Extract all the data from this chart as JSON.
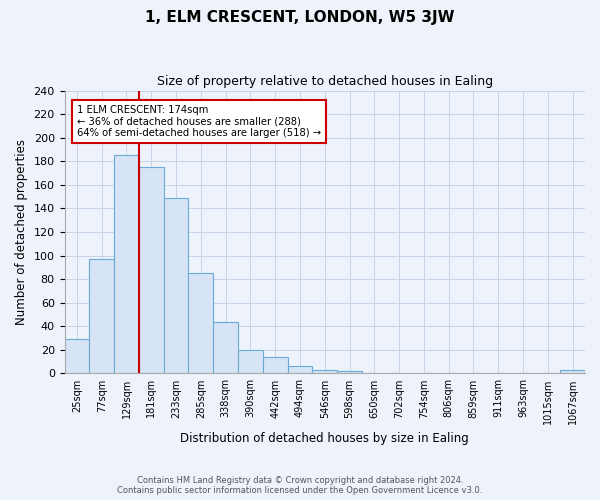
{
  "title": "1, ELM CRESCENT, LONDON, W5 3JW",
  "subtitle": "Size of property relative to detached houses in Ealing",
  "xlabel": "Distribution of detached houses by size in Ealing",
  "ylabel": "Number of detached properties",
  "bar_labels": [
    "25sqm",
    "77sqm",
    "129sqm",
    "181sqm",
    "233sqm",
    "285sqm",
    "338sqm",
    "390sqm",
    "442sqm",
    "494sqm",
    "546sqm",
    "598sqm",
    "650sqm",
    "702sqm",
    "754sqm",
    "806sqm",
    "859sqm",
    "911sqm",
    "963sqm",
    "1015sqm",
    "1067sqm"
  ],
  "bar_values": [
    29,
    97,
    185,
    175,
    149,
    85,
    44,
    20,
    14,
    6,
    3,
    2,
    0,
    0,
    0,
    0,
    0,
    0,
    0,
    0,
    3
  ],
  "bar_color": "#d6e4f5",
  "bar_edge_color": "#6aaad4",
  "vline_color": "#cc0000",
  "annotation_text": "1 ELM CRESCENT: 174sqm\n← 36% of detached houses are smaller (288)\n64% of semi-detached houses are larger (518) →",
  "annotation_box_color": "white",
  "annotation_box_edge": "#cc0000",
  "ylim": [
    0,
    240
  ],
  "yticks": [
    0,
    20,
    40,
    60,
    80,
    100,
    120,
    140,
    160,
    180,
    200,
    220,
    240
  ],
  "grid_color": "#c8d4e8",
  "footer_line1": "Contains HM Land Registry data © Crown copyright and database right 2024.",
  "footer_line2": "Contains public sector information licensed under the Open Government Licence v3.0.",
  "bg_color": "#edf2fb"
}
